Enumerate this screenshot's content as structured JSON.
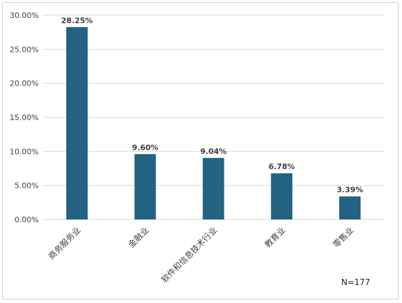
{
  "chart_data": {
    "type": "bar",
    "categories": [
      "商务服务业",
      "金融业",
      "软件和信息技术行业",
      "教育业",
      "零售业"
    ],
    "values": [
      28.25,
      9.6,
      9.04,
      6.78,
      3.39
    ],
    "data_labels": [
      "28.25%",
      "9.60%",
      "9.04%",
      "6.78%",
      "3.39%"
    ],
    "ylim": [
      0,
      30
    ],
    "yticks": [
      0,
      5,
      10,
      15,
      20,
      25,
      30
    ],
    "ytick_labels": [
      "0.00%",
      "5.00%",
      "10.00%",
      "15.00%",
      "20.00%",
      "25.00%",
      "30.00%"
    ],
    "grid": true,
    "legend": "none",
    "bar_color": "#236283",
    "grid_color": "#d9d9d9",
    "annotation": "N=177"
  }
}
